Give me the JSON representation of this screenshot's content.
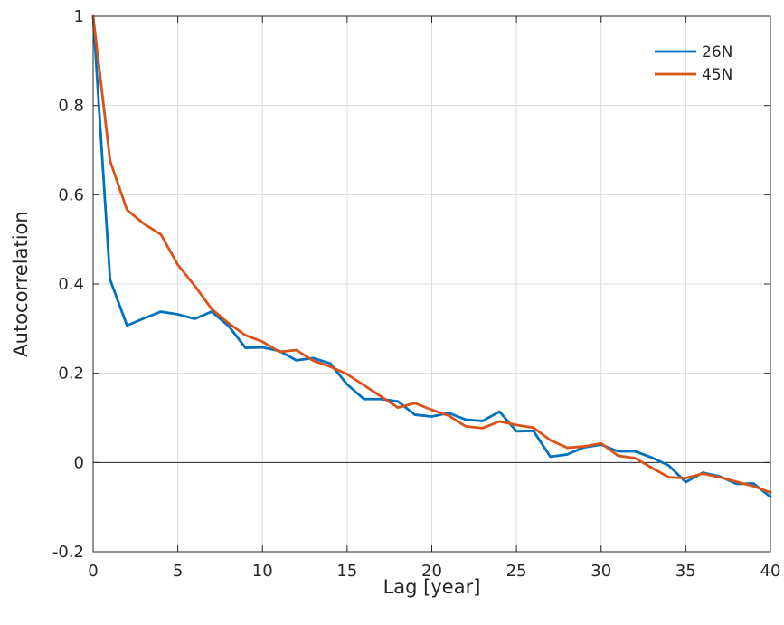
{
  "chart_data": {
    "type": "line",
    "title": "",
    "xlabel": "Lag [year]",
    "ylabel": "Autocorrelation",
    "xlim": [
      0,
      40
    ],
    "ylim": [
      -0.2,
      1
    ],
    "xticks": [
      0,
      5,
      10,
      15,
      20,
      25,
      30,
      35,
      40
    ],
    "xtick_labels": [
      "0",
      "5",
      "10",
      "15",
      "20",
      "25",
      "30",
      "35",
      "40"
    ],
    "yticks": [
      -0.2,
      0,
      0.2,
      0.4,
      0.6,
      0.8,
      1
    ],
    "ytick_labels": [
      "-0.2",
      "0",
      "0.2",
      "0.4",
      "0.6",
      "0.8",
      "1"
    ],
    "grid": true,
    "zero_line": true,
    "legend_position": "top-right",
    "x": [
      0,
      1,
      2,
      3,
      4,
      5,
      6,
      7,
      8,
      9,
      10,
      11,
      12,
      13,
      14,
      15,
      16,
      17,
      18,
      19,
      20,
      21,
      22,
      23,
      24,
      25,
      26,
      27,
      28,
      29,
      30,
      31,
      32,
      33,
      34,
      35,
      36,
      37,
      38,
      39,
      40
    ],
    "series": [
      {
        "name": "26N",
        "color": "#0072BD",
        "values": [
          1.0,
          0.41,
          0.307,
          0.323,
          0.338,
          0.332,
          0.322,
          0.338,
          0.306,
          0.257,
          0.258,
          0.25,
          0.229,
          0.234,
          0.222,
          0.175,
          0.142,
          0.142,
          0.137,
          0.107,
          0.103,
          0.111,
          0.096,
          0.093,
          0.114,
          0.07,
          0.071,
          0.013,
          0.018,
          0.034,
          0.04,
          0.025,
          0.025,
          0.011,
          -0.007,
          -0.044,
          -0.023,
          -0.031,
          -0.048,
          -0.047,
          -0.077
        ]
      },
      {
        "name": "45N",
        "color": "#D95319",
        "values": [
          1.0,
          0.676,
          0.566,
          0.535,
          0.511,
          0.443,
          0.396,
          0.344,
          0.312,
          0.285,
          0.271,
          0.248,
          0.252,
          0.228,
          0.215,
          0.198,
          0.173,
          0.148,
          0.123,
          0.133,
          0.118,
          0.105,
          0.081,
          0.077,
          0.092,
          0.084,
          0.078,
          0.05,
          0.033,
          0.036,
          0.043,
          0.015,
          0.01,
          -0.012,
          -0.033,
          -0.035,
          -0.025,
          -0.033,
          -0.043,
          -0.053,
          -0.067
        ]
      }
    ]
  }
}
